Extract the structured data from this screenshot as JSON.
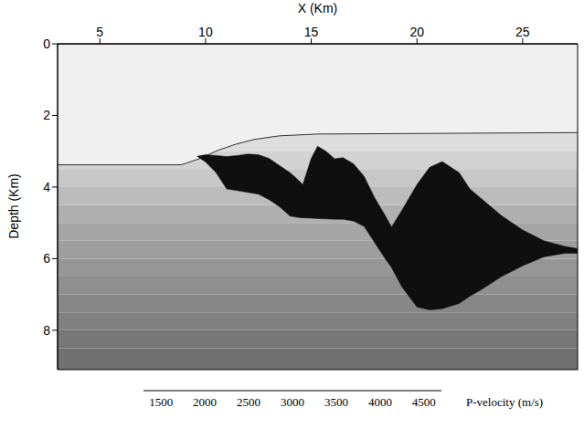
{
  "chart_data": {
    "type": "velocity_model",
    "x_label": "X (Km)",
    "y_label": "Depth (Km)",
    "xlim": [
      3,
      27.6
    ],
    "xticks": [
      5,
      10,
      15,
      20,
      25
    ],
    "ylim": [
      0,
      9.1
    ],
    "yticks": [
      0,
      2,
      4,
      6,
      8
    ],
    "grid": false,
    "colorbar": {
      "label": "P-velocity (m/s)",
      "range": [
        1300,
        4700
      ],
      "ticks": [
        1500,
        2000,
        2500,
        3000,
        3500,
        4000,
        4500
      ]
    },
    "sediment": {
      "depth": [
        0,
        2.5,
        3,
        3.5,
        4,
        4.5,
        5,
        5.5,
        6,
        6.5,
        7,
        7.5,
        8,
        8.5,
        9.1
      ],
      "velocity": [
        1600,
        1750,
        1900,
        2050,
        2200,
        2350,
        2500,
        2600,
        2700,
        2800,
        2900,
        3000,
        3100,
        3200
      ]
    },
    "water": {
      "velocity": 1500,
      "x": [
        3,
        8.85,
        9.7,
        10.56,
        11.4,
        12.3,
        13.5,
        15.3,
        27.6
      ],
      "seafloor_depth": [
        3.38,
        3.38,
        3.21,
        2.98,
        2.81,
        2.67,
        2.57,
        2.52,
        2.48
      ]
    },
    "salt": {
      "velocity": 4500,
      "x": [
        9.6,
        10,
        10.5,
        11,
        11.5,
        12,
        12.5,
        13,
        13.5,
        14,
        14.4,
        14.6,
        15,
        15.3,
        15.7,
        16.1,
        16.5,
        17,
        17.5,
        18,
        18.5,
        18.8,
        19.3,
        20,
        20.6,
        21.2,
        22,
        22.5,
        23,
        24,
        25,
        26,
        27,
        27.6
      ],
      "top": [
        3.14,
        3.1,
        3.12,
        3.15,
        3.12,
        3.08,
        3.1,
        3.2,
        3.4,
        3.6,
        3.81,
        3.93,
        3.2,
        2.86,
        3.0,
        3.21,
        3.18,
        3.35,
        3.7,
        4.3,
        4.8,
        5.12,
        4.64,
        3.93,
        3.45,
        3.29,
        3.6,
        4.05,
        4.3,
        4.8,
        5.2,
        5.5,
        5.66,
        5.72
      ],
      "base": [
        3.14,
        3.3,
        3.6,
        4.05,
        4.1,
        4.15,
        4.2,
        4.35,
        4.55,
        4.81,
        4.85,
        4.86,
        4.87,
        4.88,
        4.89,
        4.9,
        4.9,
        4.95,
        5.1,
        5.55,
        6.0,
        6.25,
        6.8,
        7.35,
        7.43,
        7.4,
        7.25,
        7.05,
        6.88,
        6.5,
        6.2,
        5.95,
        5.85,
        5.85
      ]
    }
  }
}
